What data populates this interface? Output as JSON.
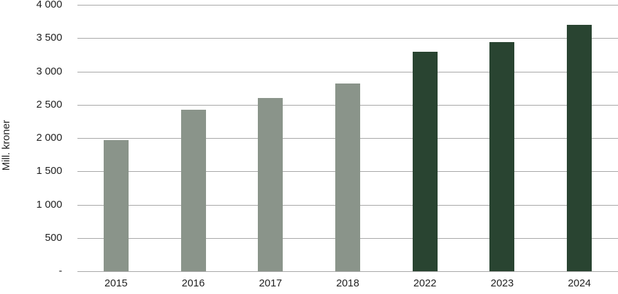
{
  "chart_data": {
    "type": "bar",
    "title": "",
    "xlabel": "",
    "ylabel": "Mill. kroner",
    "ylim": [
      0,
      4000
    ],
    "ytick_step": 500,
    "grid": true,
    "legend": "none",
    "categories": [
      "2015",
      "2016",
      "2017",
      "2018",
      "2022",
      "2023",
      "2024"
    ],
    "values": [
      1970,
      2430,
      2600,
      2815,
      3300,
      3445,
      3695
    ],
    "bar_colors": [
      "#8A948A",
      "#8A948A",
      "#8A948A",
      "#8A948A",
      "#294431",
      "#294431",
      "#294431"
    ],
    "yticks": [
      {
        "value": 0,
        "label": "-"
      },
      {
        "value": 500,
        "label": "500"
      },
      {
        "value": 1000,
        "label": "1 000"
      },
      {
        "value": 1500,
        "label": "1 500"
      },
      {
        "value": 2000,
        "label": "2 000"
      },
      {
        "value": 2500,
        "label": "2 500"
      },
      {
        "value": 3000,
        "label": "3 000"
      },
      {
        "value": 3500,
        "label": "3 500"
      },
      {
        "value": 4000,
        "label": "4 000"
      }
    ]
  },
  "colors": {
    "bar_light": "#8A948A",
    "bar_dark": "#294431",
    "gridline": "#A6A6A6",
    "text": "#1F1F1F",
    "background": "#FFFFFF"
  }
}
